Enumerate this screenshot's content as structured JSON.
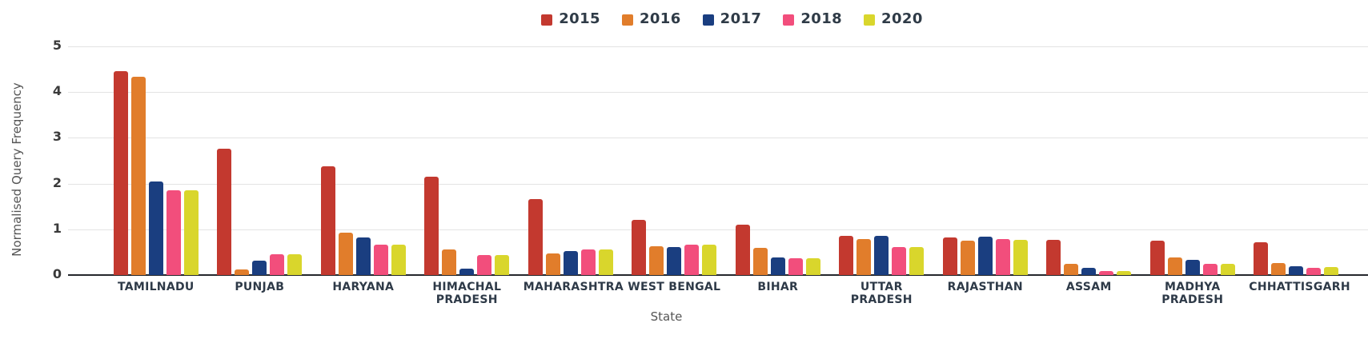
{
  "chart_data": {
    "type": "bar",
    "title": "",
    "xlabel": "State",
    "ylabel": "Normalised Query Frequency",
    "ylim": [
      0,
      5
    ],
    "yticks": [
      0,
      1,
      2,
      3,
      4,
      5
    ],
    "grid": true,
    "legend_position": "top-center",
    "background_color": "#ffffff",
    "gridline_color": "#e3e3e3",
    "axis_line_color": "#25282c",
    "tick_label_color": "#3a3a3a",
    "category_label_color": "#2e3a48",
    "axis_title_color": "#555555",
    "categories": [
      "TAMILNADU",
      "PUNJAB",
      "HARYANA",
      "HIMACHAL PRADESH",
      "MAHARASHTRA",
      "WEST BENGAL",
      "BIHAR",
      "UTTAR PRADESH",
      "RAJASTHAN",
      "ASSAM",
      "MADHYA PRADESH",
      "CHHATTISGARH"
    ],
    "series": [
      {
        "name": "2015",
        "color": "#c3392f",
        "values": [
          4.45,
          2.77,
          2.38,
          2.15,
          1.66,
          1.2,
          1.1,
          0.86,
          0.83,
          0.77,
          0.75,
          0.71
        ]
      },
      {
        "name": "2016",
        "color": "#e17d2b",
        "values": [
          4.33,
          0.12,
          0.92,
          0.56,
          0.47,
          0.63,
          0.6,
          0.79,
          0.76,
          0.25,
          0.38,
          0.26
        ]
      },
      {
        "name": "2017",
        "color": "#1a3e80",
        "values": [
          2.04,
          0.31,
          0.83,
          0.14,
          0.53,
          0.62,
          0.38,
          0.85,
          0.84,
          0.15,
          0.33,
          0.19
        ]
      },
      {
        "name": "2018",
        "color": "#f24e7c",
        "values": [
          1.85,
          0.45,
          0.66,
          0.43,
          0.56,
          0.66,
          0.36,
          0.61,
          0.78,
          0.09,
          0.25,
          0.16
        ]
      },
      {
        "name": "2020",
        "color": "#d9d62c",
        "values": [
          1.85,
          0.45,
          0.66,
          0.43,
          0.56,
          0.66,
          0.37,
          0.61,
          0.77,
          0.09,
          0.25,
          0.17
        ]
      }
    ]
  }
}
